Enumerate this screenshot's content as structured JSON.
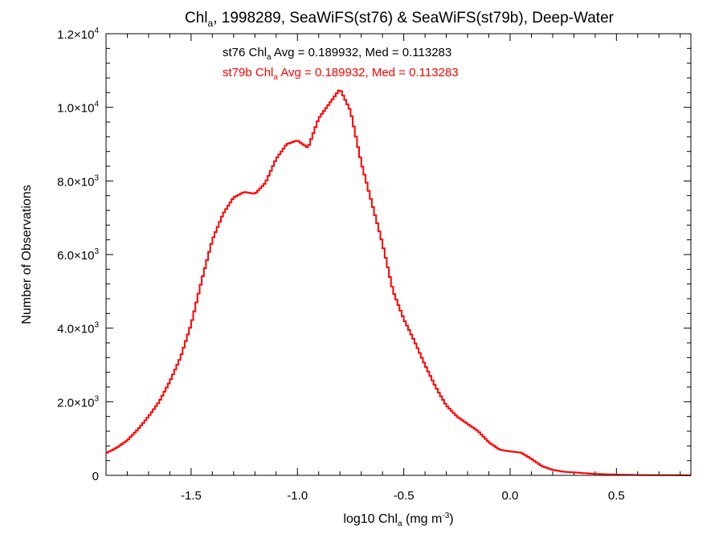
{
  "chart_data": {
    "type": "line",
    "title": "Chl",
    "title_sub": "a",
    "title_rest": ", 1998289, SeaWiFS(st76) & SeaWiFS(st79b), Deep-Water",
    "xlabel": "log10 Chl",
    "xlabel_sub": "a",
    "xlabel_unit": " (mg m",
    "xlabel_unit_sup": "-3",
    "xlabel_close": ")",
    "ylabel": "Number of Observations",
    "xlim": [
      -1.9,
      0.85
    ],
    "ylim": [
      0,
      12000
    ],
    "x_ticks": [
      {
        "value": -1.5,
        "label": "-1.5"
      },
      {
        "value": -1.0,
        "label": "-1.0"
      },
      {
        "value": -0.5,
        "label": "-0.5"
      },
      {
        "value": 0.0,
        "label": "0.0"
      },
      {
        "value": 0.5,
        "label": "0.5"
      }
    ],
    "y_ticks": [
      {
        "value": 0,
        "mant": "0",
        "exp": ""
      },
      {
        "value": 2000,
        "mant": "2.0×10",
        "exp": "3"
      },
      {
        "value": 4000,
        "mant": "4.0×10",
        "exp": "3"
      },
      {
        "value": 6000,
        "mant": "6.0×10",
        "exp": "3"
      },
      {
        "value": 8000,
        "mant": "8.0×10",
        "exp": "3"
      },
      {
        "value": 10000,
        "mant": "1.0×10",
        "exp": "4"
      },
      {
        "value": 12000,
        "mant": "1.2×10",
        "exp": "4"
      }
    ],
    "grid": false,
    "annotations": [
      {
        "pre": "st76 Chl",
        "sub": "a",
        "post": " Avg = 0.189932, Med = 0.113283",
        "color": "#000000"
      },
      {
        "pre": "st79b Chl",
        "sub": "a",
        "post": " Avg = 0.189932, Med = 0.113283",
        "color": "#ff0000"
      }
    ],
    "series": [
      {
        "color": "#ff0000",
        "x": [
          -1.9,
          -1.85,
          -1.8,
          -1.75,
          -1.7,
          -1.65,
          -1.6,
          -1.55,
          -1.5,
          -1.45,
          -1.4,
          -1.35,
          -1.3,
          -1.25,
          -1.2,
          -1.15,
          -1.1,
          -1.05,
          -1.0,
          -0.95,
          -0.9,
          -0.85,
          -0.8,
          -0.75,
          -0.7,
          -0.65,
          -0.6,
          -0.55,
          -0.5,
          -0.45,
          -0.4,
          -0.35,
          -0.3,
          -0.25,
          -0.2,
          -0.15,
          -0.1,
          -0.05,
          0.0,
          0.05,
          0.1,
          0.15,
          0.2,
          0.25,
          0.3,
          0.35,
          0.4,
          0.5,
          0.6,
          0.7,
          0.8,
          0.85
        ],
        "y": [
          600,
          750,
          950,
          1250,
          1600,
          2000,
          2550,
          3200,
          4100,
          5300,
          6400,
          7100,
          7550,
          7700,
          7650,
          7950,
          8600,
          9000,
          9100,
          8900,
          9700,
          10100,
          10500,
          9900,
          8500,
          7400,
          6300,
          5000,
          4250,
          3650,
          3000,
          2400,
          1900,
          1600,
          1400,
          1200,
          900,
          700,
          650,
          620,
          450,
          250,
          150,
          100,
          80,
          60,
          40,
          20,
          10,
          5,
          3,
          2
        ]
      }
    ]
  }
}
